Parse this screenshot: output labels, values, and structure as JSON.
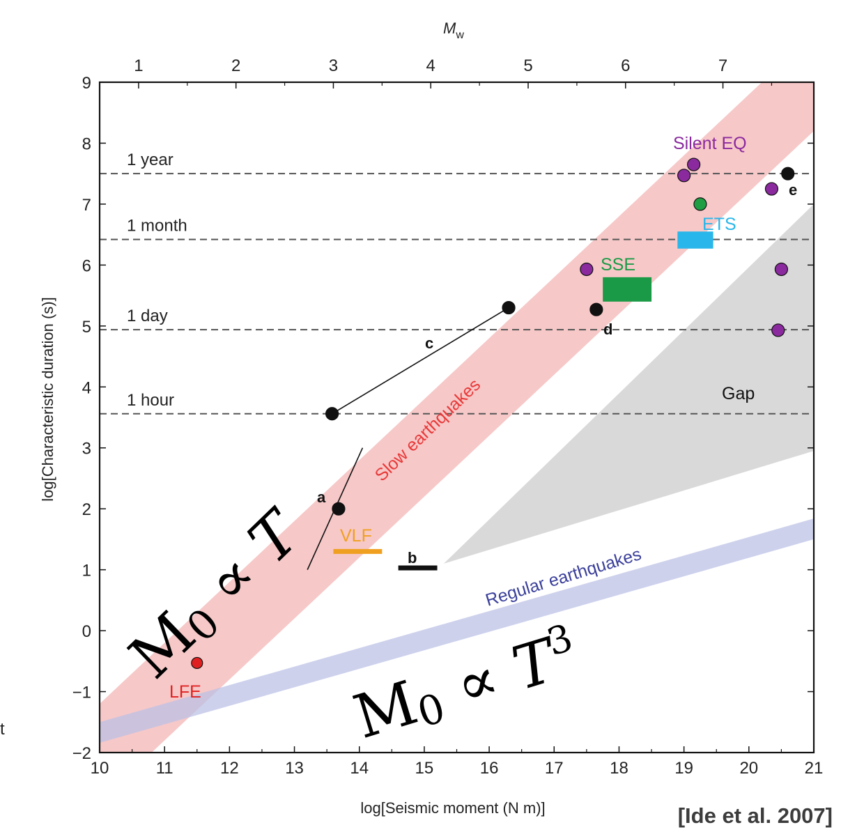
{
  "chart_data": {
    "type": "scatter",
    "xlabel": "log[Seismic moment (N m)]",
    "ylabel": "log[Characteristic duration (s)]",
    "top_axis_label": "M",
    "top_axis_label_sub": "w",
    "xlim": [
      10,
      21
    ],
    "ylim": [
      -2,
      9
    ],
    "x_ticks": [
      "10",
      "11",
      "12",
      "13",
      "14",
      "15",
      "16",
      "17",
      "18",
      "19",
      "20",
      "21"
    ],
    "y_ticks": [
      "−2",
      "−1",
      "0",
      "1",
      "2",
      "3",
      "4",
      "5",
      "6",
      "7",
      "8",
      "9"
    ],
    "top_ticks": [
      "1",
      "2",
      "3",
      "4",
      "5",
      "6",
      "7"
    ],
    "grid": false,
    "time_references": [
      {
        "label": "1 year",
        "y": 7.5
      },
      {
        "label": "1 month",
        "y": 6.42
      },
      {
        "label": "1 day",
        "y": 4.94
      },
      {
        "label": "1 hour",
        "y": 3.56
      }
    ],
    "bands": [
      {
        "label": "Slow earthquakes",
        "color": "#f4b6b6",
        "from": [
          10,
          -2
        ],
        "to": [
          21,
          9
        ],
        "half_width_y": 0.8
      },
      {
        "label": "Regular earthquakes",
        "color": "#bcc2e6",
        "from": [
          10,
          -1.67
        ],
        "to": [
          21,
          1.67
        ],
        "half_width_y": 0.17
      }
    ],
    "gap_region": {
      "label": "Gap",
      "color": "#d9d9d9",
      "polygon": [
        [
          15.3,
          1.1
        ],
        [
          21,
          7
        ],
        [
          21,
          2.95
        ]
      ]
    },
    "series": [
      {
        "name": "LFE",
        "color": "#e02020",
        "points": [
          [
            11.5,
            -0.53
          ]
        ]
      },
      {
        "name": "Silent EQ",
        "color": "#8a2a9e",
        "points": [
          [
            17.5,
            5.93
          ],
          [
            19.0,
            7.47
          ],
          [
            19.15,
            7.65
          ],
          [
            20.35,
            7.25
          ],
          [
            20.5,
            5.93
          ],
          [
            20.45,
            4.93
          ]
        ]
      },
      {
        "name": "black points",
        "color": "#111111",
        "points": [
          [
            13.68,
            2.0
          ],
          [
            13.58,
            3.56
          ],
          [
            16.3,
            5.3
          ],
          [
            17.65,
            5.27
          ],
          [
            20.6,
            7.5
          ]
        ]
      },
      {
        "name": "green point",
        "color": "#1f9e44",
        "points": [
          [
            19.25,
            7.0
          ]
        ]
      }
    ],
    "ranges": [
      {
        "label": "VLF",
        "color": "#f0a020",
        "type": "bar",
        "x": [
          13.6,
          14.35
        ],
        "y": 1.3
      },
      {
        "label": "b",
        "color": "#111111",
        "type": "bar",
        "x": [
          14.6,
          15.2
        ],
        "y": 1.03
      },
      {
        "label": "ETS",
        "color": "#29b6ea",
        "type": "box",
        "x": [
          18.9,
          19.45
        ],
        "y": [
          6.27,
          6.55
        ]
      },
      {
        "label": "SSE",
        "color": "#1a9a46",
        "type": "box",
        "x": [
          17.75,
          18.5
        ],
        "y": [
          5.4,
          5.8
        ]
      }
    ],
    "lines": [
      {
        "label": "a",
        "from": [
          13.2,
          1.0
        ],
        "to": [
          14.05,
          3.0
        ]
      },
      {
        "label": "c",
        "from": [
          13.58,
          3.56
        ],
        "to": [
          16.3,
          5.3
        ]
      }
    ],
    "annotations": {
      "slow": "Slow earthquakes",
      "regular": "Regular earthquakes",
      "gap": "Gap",
      "lfe": "LFE",
      "vlf": "VLF",
      "sse": "SSE",
      "ets": "ETS",
      "silent": "Silent EQ",
      "a": "a",
      "b": "b",
      "c": "c",
      "d": "d",
      "e": "e"
    },
    "scaling_laws": {
      "slow": {
        "base": "M",
        "sub": "0",
        "rel": " ∝ T",
        "sup": ""
      },
      "regular": {
        "base": "M",
        "sub": "0",
        "rel": " ∝ T",
        "sup": "3"
      }
    }
  },
  "citation": "[Ide et al. 2007]",
  "left_edge_text": "t"
}
